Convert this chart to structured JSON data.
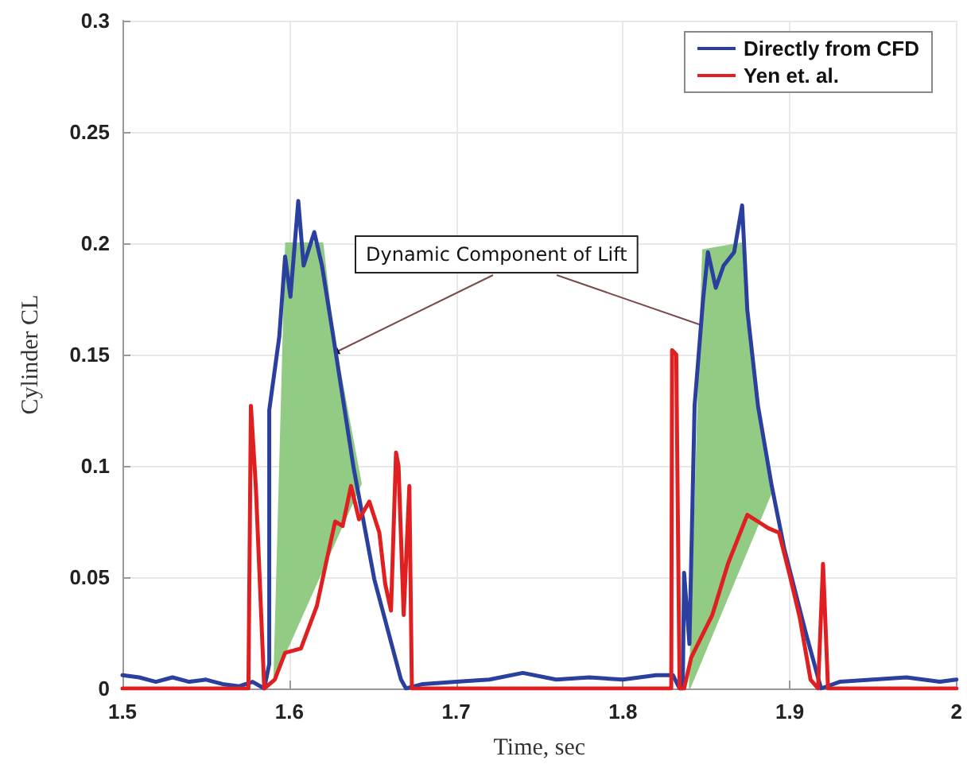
{
  "chart_data": {
    "type": "line",
    "xlabel": "Time, sec",
    "ylabel": "Cylinder CL",
    "annotations": [
      {
        "text": "Dynamic Component of Lift",
        "x": 1.625,
        "y": 0.15
      }
    ],
    "xlim": [
      1.5,
      2.0
    ],
    "xticks": [
      1.5,
      1.6,
      1.7,
      1.8,
      1.9,
      2
    ],
    "ylim": [
      0,
      0.3
    ],
    "yticks": [
      0,
      0.05,
      0.1,
      0.15,
      0.2,
      0.25,
      0.3
    ],
    "grid": true,
    "legend": "top right",
    "marker": "none",
    "line_style": "solid",
    "series": [
      {
        "type": "area",
        "color": "#92cc84",
        "x": [
          1.591,
          1.598,
          1.62,
          1.626,
          1.643,
          1.591
        ],
        "values": [
          0.005,
          0.2,
          0.2,
          0.16,
          0.092,
          0.005
        ]
      },
      {
        "type": "area",
        "color": "#92cc84",
        "x": [
          1.84,
          1.848,
          1.871,
          1.878,
          1.89,
          1.84
        ],
        "values": [
          0.0,
          0.197,
          0.2,
          0.14,
          0.09,
          0.0
        ]
      },
      {
        "name": "Directly from CFD",
        "color": "#2a3f9e",
        "x": [
          1.5,
          1.51,
          1.52,
          1.53,
          1.54,
          1.55,
          1.56,
          1.57,
          1.578,
          1.585,
          1.588,
          1.588,
          1.594,
          1.5975,
          1.6007,
          1.6054,
          1.6086,
          1.615,
          1.6196,
          1.626,
          1.6386,
          1.651,
          1.667,
          1.67,
          1.68,
          1.7,
          1.72,
          1.74,
          1.76,
          1.78,
          1.8,
          1.82,
          1.83,
          1.834,
          1.8359,
          1.8367,
          1.8399,
          1.843,
          1.848,
          1.851,
          1.8557,
          1.8604,
          1.8667,
          1.8715,
          1.8746,
          1.881,
          1.889,
          1.8967,
          1.9093,
          1.9188,
          1.93,
          1.95,
          1.97,
          1.99,
          2.0
        ],
        "values": [
          0.006,
          0.005,
          0.003,
          0.005,
          0.003,
          0.004,
          0.002,
          0.001,
          0.003,
          0.0,
          0.011,
          0.125,
          0.158,
          0.194,
          0.176,
          0.219,
          0.19,
          0.205,
          0.19,
          0.16,
          0.099,
          0.049,
          0.004,
          0.0,
          0.002,
          0.003,
          0.004,
          0.007,
          0.004,
          0.005,
          0.004,
          0.006,
          0.006,
          0.0,
          0.0,
          0.052,
          0.02,
          0.127,
          0.174,
          0.196,
          0.18,
          0.19,
          0.196,
          0.217,
          0.17,
          0.127,
          0.092,
          0.063,
          0.026,
          0.0,
          0.003,
          0.004,
          0.005,
          0.003,
          0.004
        ]
      },
      {
        "name": "Yen et. al.",
        "color": "#e02020",
        "x": [
          1.5,
          1.5755,
          1.577,
          1.58,
          1.585,
          1.5913,
          1.5975,
          1.607,
          1.6165,
          1.6228,
          1.6275,
          1.632,
          1.637,
          1.6418,
          1.648,
          1.654,
          1.6575,
          1.661,
          1.664,
          1.6655,
          1.6686,
          1.672,
          1.6735,
          1.829,
          1.8295,
          1.832,
          1.834,
          1.8367,
          1.841,
          1.8536,
          1.863,
          1.8746,
          1.881,
          1.8872,
          1.8936,
          1.9,
          1.906,
          1.9125,
          1.917,
          1.92,
          1.923,
          2.0
        ],
        "values": [
          0,
          0,
          0.127,
          0.09,
          0,
          0.004,
          0.016,
          0.018,
          0.037,
          0.059,
          0.075,
          0.073,
          0.091,
          0.076,
          0.084,
          0.07,
          0.047,
          0.035,
          0.106,
          0.1,
          0.033,
          0.091,
          0,
          0,
          0.152,
          0.15,
          0,
          0,
          0.014,
          0.033,
          0.056,
          0.078,
          0.075,
          0.072,
          0.07,
          0.051,
          0.032,
          0.004,
          0,
          0.056,
          0,
          0
        ]
      }
    ]
  }
}
